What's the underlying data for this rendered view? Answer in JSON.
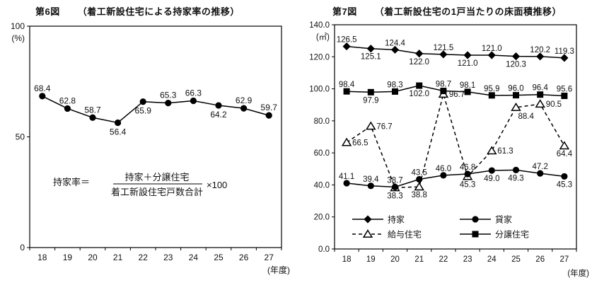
{
  "colors": {
    "ink": "#000000",
    "label_text": "#111111",
    "background": "#ffffff"
  },
  "chart_data": [
    {
      "type": "line",
      "figure_label": "第6図",
      "title": "（着工新設住宅による持家率の推移）",
      "y_unit": "(%)",
      "x_unit": "(年度)",
      "categories": [
        "18",
        "19",
        "20",
        "21",
        "22",
        "23",
        "24",
        "25",
        "26",
        "27"
      ],
      "ylim": [
        0,
        100
      ],
      "yticks": [
        0,
        50,
        100
      ],
      "ytick_decimals": 0,
      "value_decimals": 1,
      "grid": false,
      "legend": null,
      "series": [
        {
          "name": "持家率",
          "key": "owner-rate",
          "marker": "circle",
          "line": "solid",
          "color": "#000000",
          "values": [
            68.4,
            62.8,
            58.7,
            56.4,
            65.9,
            65.3,
            66.3,
            64.2,
            62.9,
            59.7
          ],
          "label_pos": [
            "a",
            "a",
            "a",
            "b",
            "b",
            "a",
            "a",
            "b",
            "a",
            "a"
          ]
        }
      ],
      "formula": {
        "lhs": "持家率＝",
        "numerator": "持家＋分譲住宅",
        "denominator": "着工新設住宅戸数合計",
        "suffix": "×100"
      }
    },
    {
      "type": "line",
      "figure_label": "第7図",
      "title": "（着工新設住宅の1戸当たりの床面積推移）",
      "y_unit": "(㎡)",
      "x_unit": "(年度)",
      "categories": [
        "18",
        "19",
        "20",
        "21",
        "22",
        "23",
        "24",
        "25",
        "26",
        "27"
      ],
      "ylim": [
        0,
        140
      ],
      "yticks": [
        0,
        20,
        40,
        60,
        80,
        100,
        120,
        140
      ],
      "ytick_decimals": 1,
      "value_decimals": 1,
      "grid": false,
      "legend": {
        "position": "bottom-inside",
        "order": [
          "持家",
          "貸家",
          "給与住宅",
          "分譲住宅"
        ]
      },
      "series": [
        {
          "name": "持家",
          "key": "owned",
          "marker": "diamond",
          "line": "solid",
          "color": "#000000",
          "values": [
            126.5,
            125.1,
            124.4,
            122.0,
            121.5,
            121.0,
            121.0,
            120.3,
            120.2,
            119.3
          ],
          "label_pos": [
            "a",
            "b",
            "a",
            "b",
            "a",
            "b",
            "a",
            "b",
            "a",
            "a"
          ]
        },
        {
          "name": "貸家",
          "key": "rented",
          "marker": "circle",
          "line": "solid",
          "color": "#000000",
          "values": [
            41.1,
            39.4,
            38.7,
            43.5,
            46.0,
            46.8,
            49.0,
            49.3,
            47.2,
            45.3
          ],
          "label_pos": [
            "a",
            "a",
            "a",
            "a",
            "a",
            "a",
            "b",
            "b",
            "a",
            "b"
          ]
        },
        {
          "name": "給与住宅",
          "key": "employer-provided",
          "marker": "triangle-open",
          "line": "dashed",
          "color": "#000000",
          "values": [
            66.5,
            76.7,
            38.3,
            38.8,
            96.7,
            45.3,
            61.3,
            88.4,
            90.5,
            64.4
          ],
          "label_pos": [
            "r",
            "r",
            "b",
            "b",
            "r",
            "b",
            "r",
            "br",
            "r",
            "b"
          ]
        },
        {
          "name": "分譲住宅",
          "key": "built-for-sale",
          "marker": "square",
          "line": "solid",
          "color": "#000000",
          "values": [
            98.4,
            97.9,
            98.3,
            102.0,
            98.7,
            98.1,
            95.9,
            96.0,
            96.4,
            95.6
          ],
          "label_pos": [
            "a",
            "b",
            "a",
            "b",
            "a",
            "a",
            "a",
            "a",
            "a",
            "a"
          ]
        }
      ]
    }
  ]
}
